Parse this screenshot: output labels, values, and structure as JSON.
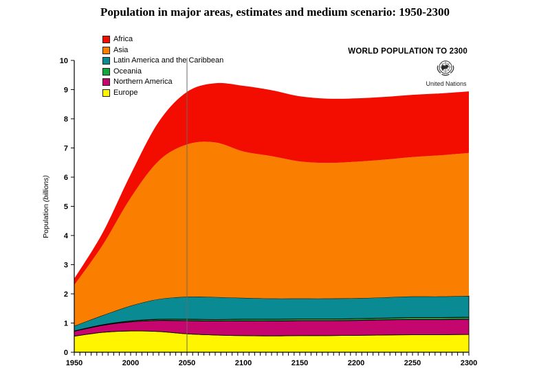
{
  "title": "Population in major areas, estimates and medium scenario: 1950-2300",
  "banner": "WORLD POPULATION TO 2300",
  "un_caption": "United Nations",
  "y_axis": {
    "label_main": "Population",
    "label_unit": "(billions)",
    "ticks": [
      0,
      1,
      2,
      3,
      4,
      5,
      6,
      7,
      8,
      9,
      10
    ]
  },
  "x_axis": {
    "tick_labels": [
      1950,
      2000,
      2050,
      2100,
      2150,
      2200,
      2250,
      2300
    ],
    "minor_tick_step": 5
  },
  "colors": {
    "axis": "#000000",
    "divider": "#6a6a6a",
    "band_outline": "#000000"
  },
  "chart_data": {
    "type": "area",
    "stacked": true,
    "title": "Population in major areas, estimates and medium scenario: 1950-2300",
    "xlabel": "",
    "ylabel": "Population (billions)",
    "ylim": [
      0,
      10
    ],
    "xlim": [
      1950,
      2300
    ],
    "grid": false,
    "legend_position": "top-left",
    "divider_year": 2050,
    "x": [
      1950,
      1975,
      2000,
      2025,
      2050,
      2075,
      2100,
      2125,
      2150,
      2175,
      2200,
      2225,
      2250,
      2275,
      2300
    ],
    "series": [
      {
        "name": "Europe",
        "color": "#fff500",
        "values": [
          0.55,
          0.68,
          0.73,
          0.71,
          0.63,
          0.59,
          0.57,
          0.56,
          0.57,
          0.57,
          0.58,
          0.59,
          0.6,
          0.6,
          0.61
        ]
      },
      {
        "name": "Northern America",
        "color": "#c4066e",
        "values": [
          0.17,
          0.24,
          0.31,
          0.38,
          0.45,
          0.48,
          0.5,
          0.51,
          0.51,
          0.51,
          0.51,
          0.52,
          0.52,
          0.52,
          0.52
        ]
      },
      {
        "name": "Oceania",
        "color": "#14a53c",
        "values": [
          0.01,
          0.02,
          0.03,
          0.04,
          0.05,
          0.05,
          0.06,
          0.06,
          0.06,
          0.06,
          0.06,
          0.06,
          0.07,
          0.07,
          0.07
        ]
      },
      {
        "name": "Latin America and the Caribbean",
        "color": "#0a8a93",
        "values": [
          0.17,
          0.32,
          0.52,
          0.69,
          0.77,
          0.77,
          0.73,
          0.71,
          0.7,
          0.7,
          0.7,
          0.71,
          0.72,
          0.72,
          0.73
        ]
      },
      {
        "name": "Asia",
        "color": "#fa7e00",
        "values": [
          1.4,
          2.4,
          3.7,
          4.74,
          5.22,
          5.3,
          5.02,
          4.88,
          4.7,
          4.65,
          4.68,
          4.72,
          4.78,
          4.84,
          4.9
        ]
      },
      {
        "name": "Africa",
        "color": "#f20d00",
        "values": [
          0.22,
          0.42,
          0.8,
          1.34,
          1.8,
          2.03,
          2.25,
          2.26,
          2.23,
          2.2,
          2.17,
          2.15,
          2.13,
          2.12,
          2.11
        ]
      }
    ],
    "outlined_series": [
      "Europe",
      "Northern America",
      "Oceania",
      "Latin America and the Caribbean"
    ],
    "legend_order": [
      "Africa",
      "Asia",
      "Latin America and the Caribbean",
      "Oceania",
      "Northern America",
      "Europe"
    ]
  }
}
